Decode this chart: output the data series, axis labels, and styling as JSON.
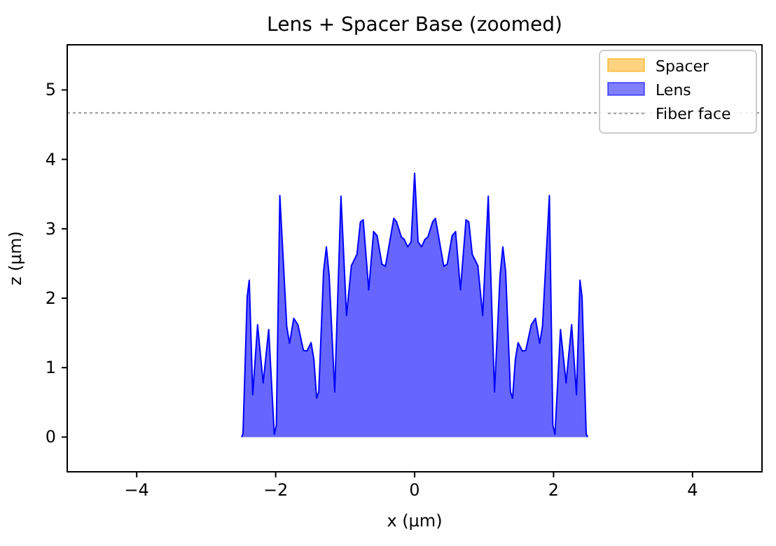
{
  "chart_data": {
    "type": "area",
    "title": "Lens + Spacer Base (zoomed)",
    "xlabel": "x (µm)",
    "ylabel": "z (µm)",
    "x": [
      -2.49,
      -2.47,
      -2.41,
      -2.38,
      -2.33,
      -2.26,
      -2.18,
      -2.1,
      -2.02,
      -1.99,
      -1.94,
      -1.84,
      -1.8,
      -1.74,
      -1.68,
      -1.6,
      -1.55,
      -1.49,
      -1.45,
      -1.41,
      -1.38,
      -1.31,
      -1.27,
      -1.23,
      -1.15,
      -1.06,
      -0.98,
      -0.91,
      -0.83,
      -0.78,
      -0.74,
      -0.66,
      -0.59,
      -0.54,
      -0.47,
      -0.42,
      -0.38,
      -0.3,
      -0.26,
      -0.19,
      -0.15,
      -0.1,
      -0.05,
      0,
      0.05,
      0.1,
      0.15,
      0.19,
      0.26,
      0.3,
      0.38,
      0.42,
      0.47,
      0.54,
      0.59,
      0.66,
      0.74,
      0.78,
      0.83,
      0.91,
      0.98,
      1.06,
      1.15,
      1.23,
      1.27,
      1.31,
      1.38,
      1.41,
      1.45,
      1.49,
      1.55,
      1.6,
      1.68,
      1.74,
      1.8,
      1.84,
      1.94,
      1.99,
      2.02,
      2.1,
      2.18,
      2.26,
      2.33,
      2.38,
      2.41,
      2.47,
      2.49
    ],
    "series": [
      {
        "name": "Spacer",
        "color": "#ffa500",
        "values": [
          null,
          null,
          null,
          null,
          null,
          null,
          null,
          null,
          null,
          null,
          null,
          null,
          null,
          null,
          null,
          null,
          null,
          null,
          null,
          null,
          null,
          null,
          null,
          null,
          null,
          null,
          null,
          null,
          null,
          null,
          null,
          null,
          null,
          null,
          null,
          null,
          null,
          null,
          null,
          null,
          null,
          null,
          null,
          null,
          null,
          null,
          null,
          null,
          null,
          null,
          null,
          null,
          null,
          null,
          null,
          null,
          null,
          null,
          null,
          null,
          null,
          null,
          null,
          null,
          null,
          null,
          null,
          null,
          null,
          null,
          null,
          null,
          null,
          null,
          null,
          null,
          null,
          null,
          null,
          null,
          null,
          null,
          null,
          null,
          null,
          null,
          null
        ]
      },
      {
        "name": "Lens",
        "color": "#0000ff",
        "values": [
          0,
          0.05,
          2.02,
          2.26,
          0.61,
          1.62,
          0.78,
          1.55,
          0.04,
          0.17,
          3.48,
          1.59,
          1.35,
          1.71,
          1.62,
          1.25,
          1.24,
          1.36,
          1.12,
          0.56,
          0.65,
          2.39,
          2.74,
          2.33,
          0.65,
          3.47,
          1.75,
          2.47,
          2.63,
          3.1,
          3.13,
          2.12,
          2.96,
          2.9,
          2.49,
          2.46,
          2.69,
          3.15,
          3.1,
          2.88,
          2.85,
          2.74,
          2.81,
          3.8,
          2.81,
          2.74,
          2.85,
          2.88,
          3.1,
          3.15,
          2.69,
          2.46,
          2.49,
          2.9,
          2.96,
          2.12,
          3.13,
          3.1,
          2.63,
          2.47,
          1.75,
          3.47,
          0.65,
          2.33,
          2.74,
          2.39,
          0.65,
          0.56,
          1.12,
          1.36,
          1.24,
          1.25,
          1.62,
          1.71,
          1.35,
          1.59,
          3.48,
          0.17,
          0.04,
          1.55,
          0.78,
          1.62,
          0.61,
          2.26,
          2.02,
          0.05,
          0
        ]
      }
    ],
    "ref_lines": [
      {
        "axis": "y",
        "value": 4.67,
        "label": "Fiber face",
        "color": "#aaaaaa",
        "line_style": "dotted"
      }
    ],
    "xlim": [
      -5,
      5
    ],
    "xticks": [
      {
        "value": -4,
        "label": "−4"
      },
      {
        "value": -2,
        "label": "−2"
      },
      0,
      2,
      4
    ],
    "ylim": [
      -0.5,
      5.65
    ],
    "yticks": [
      0,
      1,
      2,
      3,
      4,
      5
    ],
    "grid": false,
    "legend": "top right"
  }
}
